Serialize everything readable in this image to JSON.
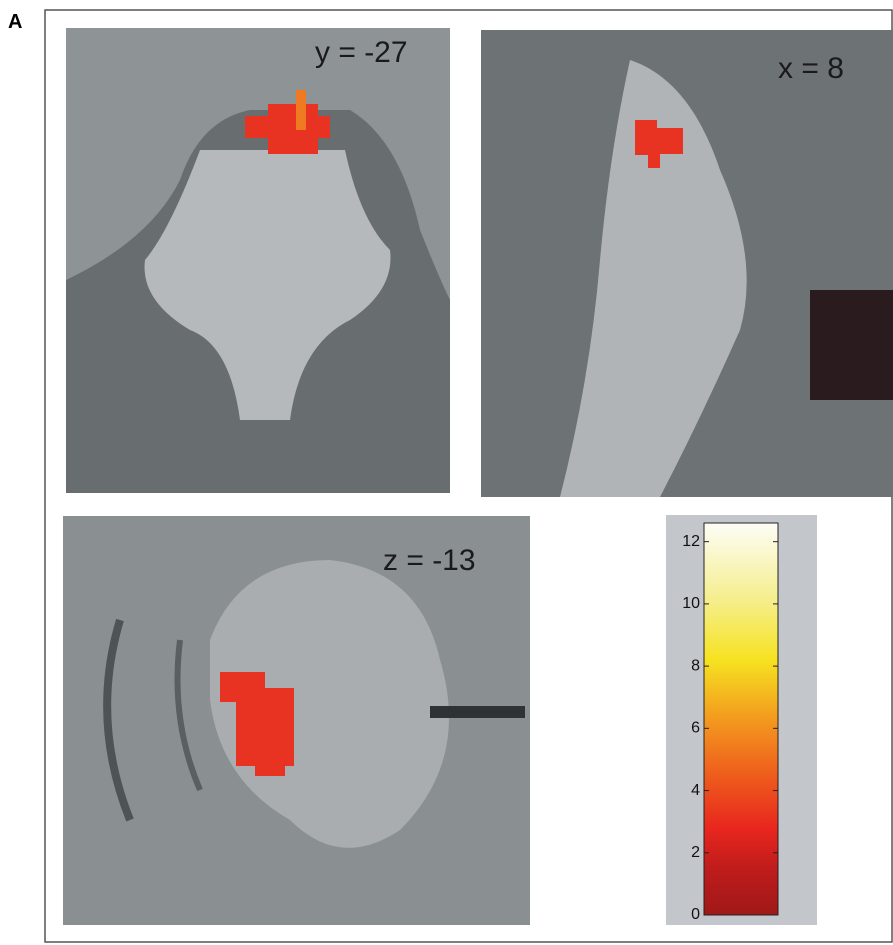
{
  "panel_label": "A",
  "slices": [
    {
      "label": "y = -27"
    },
    {
      "label": "x = 8"
    },
    {
      "label": "z = -13"
    }
  ],
  "colorbar": {
    "ylim": [
      0,
      12.6
    ],
    "yticks": [
      0,
      2,
      4,
      6,
      8,
      10,
      12
    ]
  }
}
